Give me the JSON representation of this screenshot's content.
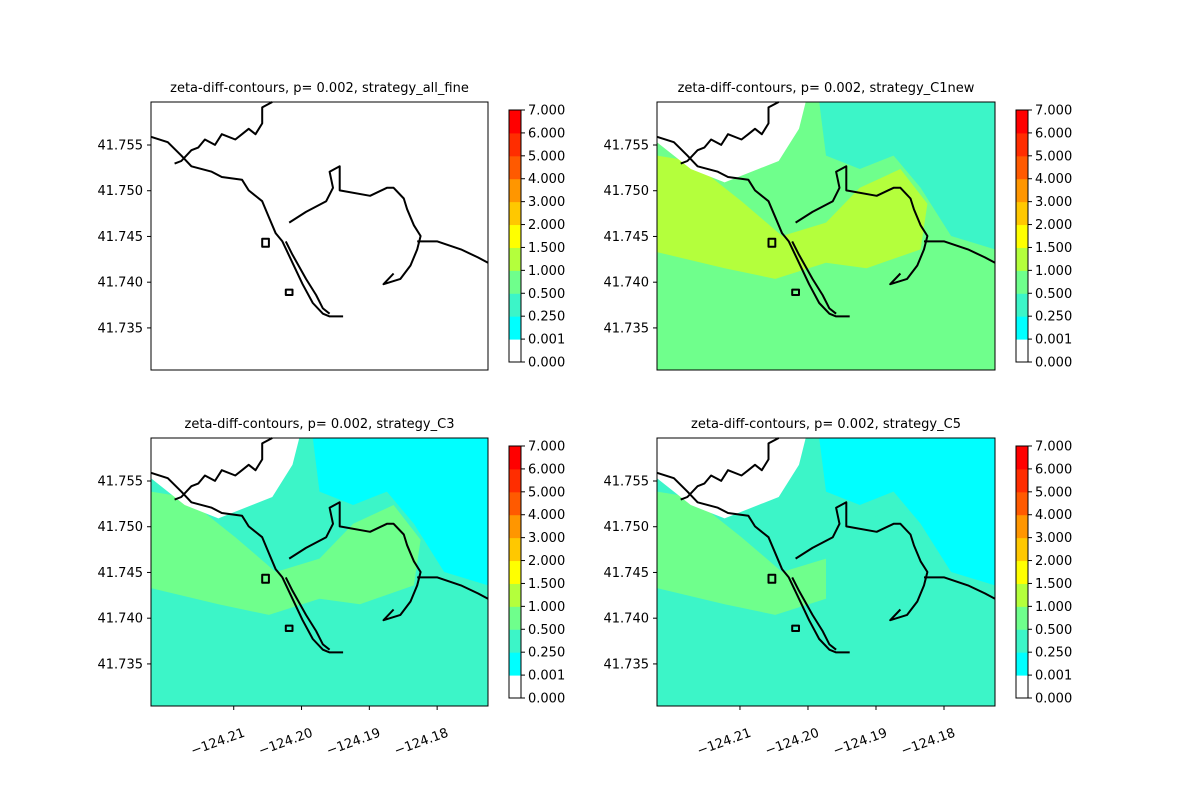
{
  "figure": {
    "background": "#ffffff"
  },
  "colorbar": {
    "levels": [
      0.0,
      0.001,
      0.25,
      0.5,
      1.0,
      1.5,
      2.0,
      3.0,
      4.0,
      5.0,
      6.0,
      7.0
    ],
    "labels": [
      "0.000",
      "0.001",
      "0.250",
      "0.500",
      "1.000",
      "1.500",
      "2.000",
      "3.000",
      "4.000",
      "5.000",
      "6.000",
      "7.000"
    ],
    "colors": [
      "#ffffff",
      "#00ffff",
      "#3cf5c8",
      "#6fff8c",
      "#b4ff3c",
      "#ffff00",
      "#ffc800",
      "#ff9600",
      "#ff5a00",
      "#ff2d00",
      "#ff0000"
    ]
  },
  "chart_data": [
    {
      "type": "heatmap",
      "title": "zeta-diff-contours, p= 0.002, strategy_all_fine",
      "xlim": [
        -124.2222,
        -124.1725
      ],
      "ylim": [
        41.7304,
        41.7597
      ],
      "xticks": [],
      "yticks": [
        41.735,
        41.74,
        41.745,
        41.75,
        41.755
      ],
      "ytick_labels": [
        "41.735",
        "41.740",
        "41.745",
        "41.750",
        "41.755"
      ],
      "fill_levels_by_region": {
        "offshore": 0.0,
        "channel": 0.0,
        "nearshore": 0.0,
        "bay": 0.0
      },
      "coastline": "shown"
    },
    {
      "type": "heatmap",
      "title": "zeta-diff-contours, p= 0.002, strategy_C1new",
      "xlim": [
        -124.2222,
        -124.1725
      ],
      "ylim": [
        41.7304,
        41.7597
      ],
      "xticks": [],
      "yticks": [
        41.735,
        41.74,
        41.745,
        41.75,
        41.755
      ],
      "ytick_labels": [
        "41.735",
        "41.740",
        "41.745",
        "41.750",
        "41.755"
      ],
      "fill_levels_by_region": {
        "offshore": 0.5,
        "channel": 1.0,
        "nearshore": 1.0,
        "bay": 0.25
      },
      "coastline": "shown"
    },
    {
      "type": "heatmap",
      "title": "zeta-diff-contours, p= 0.002, strategy_C3",
      "xlim": [
        -124.2222,
        -124.1725
      ],
      "ylim": [
        41.7304,
        41.7597
      ],
      "xticks": [
        -124.21,
        -124.2,
        -124.19,
        -124.18
      ],
      "xtick_labels": [
        "−124.21",
        "−124.20",
        "−124.19",
        "−124.18"
      ],
      "yticks": [
        41.735,
        41.74,
        41.745,
        41.75,
        41.755
      ],
      "ytick_labels": [
        "41.735",
        "41.740",
        "41.745",
        "41.750",
        "41.755"
      ],
      "fill_levels_by_region": {
        "offshore": 0.25,
        "channel": 0.5,
        "nearshore": 0.5,
        "bay": 0.001
      },
      "coastline": "shown"
    },
    {
      "type": "heatmap",
      "title": "zeta-diff-contours, p= 0.002, strategy_C5",
      "xlim": [
        -124.2222,
        -124.1725
      ],
      "ylim": [
        41.7304,
        41.7597
      ],
      "xticks": [
        -124.21,
        -124.2,
        -124.19,
        -124.18
      ],
      "xtick_labels": [
        "−124.21",
        "−124.20",
        "−124.19",
        "−124.18"
      ],
      "yticks": [
        41.735,
        41.74,
        41.745,
        41.75,
        41.755
      ],
      "ytick_labels": [
        "41.735",
        "41.740",
        "41.745",
        "41.750",
        "41.755"
      ],
      "fill_levels_by_region": {
        "offshore": 0.25,
        "channel": 0.25,
        "nearshore": 0.5,
        "bay": 0.001
      },
      "coastline": "shown"
    }
  ]
}
